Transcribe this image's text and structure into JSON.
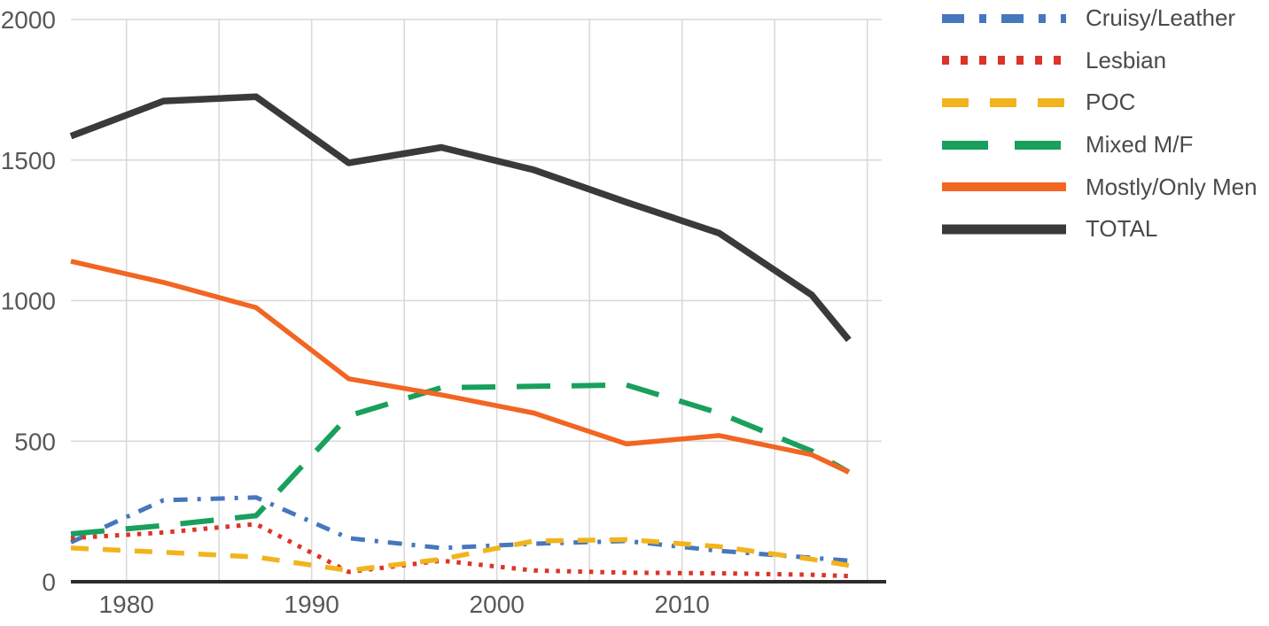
{
  "chart_data": {
    "type": "line",
    "title": "",
    "xlabel": "",
    "ylabel": "",
    "x": [
      1977,
      1982,
      1987,
      1992,
      1997,
      2002,
      2007,
      2012,
      2017,
      2019
    ],
    "series": [
      {
        "name": "Cruisy/Leather",
        "color": "#4677BD",
        "dash": "dashdot",
        "line_width": 5,
        "values": [
          140,
          290,
          300,
          155,
          120,
          135,
          145,
          110,
          85,
          75
        ]
      },
      {
        "name": "Lesbian",
        "color": "#DC3428",
        "dash": "dotted",
        "line_width": 5,
        "values": [
          155,
          175,
          205,
          35,
          75,
          40,
          32,
          30,
          25,
          20
        ]
      },
      {
        "name": "POC",
        "color": "#F2B41D",
        "dash": "dashed",
        "line_width": 5.5,
        "values": [
          120,
          105,
          88,
          40,
          80,
          145,
          150,
          125,
          80,
          58
        ]
      },
      {
        "name": "Mixed M/F",
        "color": "#18A05C",
        "dash": "longdash",
        "line_width": 6,
        "values": [
          170,
          200,
          235,
          590,
          690,
          695,
          700,
          600,
          465,
          390
        ]
      },
      {
        "name": "Mostly/Only Men",
        "color": "#F26522",
        "dash": "solid",
        "line_width": 5.5,
        "values": [
          1140,
          1065,
          975,
          722,
          665,
          600,
          490,
          520,
          452,
          390
        ]
      },
      {
        "name": "TOTAL",
        "color": "#3A3A3A",
        "dash": "solid",
        "line_width": 7.5,
        "values": [
          1585,
          1710,
          1725,
          1490,
          1545,
          1465,
          1350,
          1240,
          1020,
          860
        ]
      }
    ],
    "x_axis": {
      "tick_labels": [
        "1980",
        "1990",
        "2000",
        "2010"
      ],
      "tick_years": [
        1980,
        1990,
        2000,
        2010
      ],
      "gridline_years": [
        1980,
        1985,
        1990,
        1995,
        2000,
        2005,
        2010,
        2015,
        2020
      ],
      "range": [
        1977,
        2021
      ]
    },
    "y_axis": {
      "tick_labels": [
        "0",
        "500",
        "1000",
        "1500",
        "2000"
      ],
      "tick_values": [
        0,
        500,
        1000,
        1500,
        2000
      ],
      "range": [
        0,
        2000
      ]
    },
    "grid": true,
    "legend_position": "right"
  },
  "colors": {
    "background": "#FFFFFF",
    "gridline": "#D8D8D8",
    "axis_line": "#2B2B2B",
    "tick_text": "#58585A",
    "legend_text": "#4A4A4C"
  }
}
